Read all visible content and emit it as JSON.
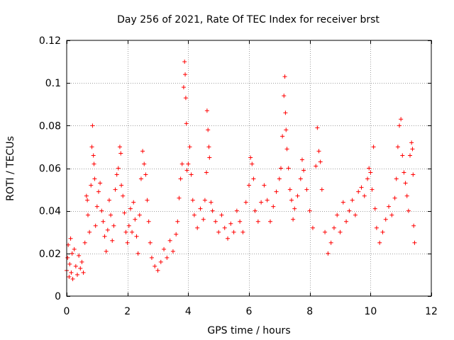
{
  "chart_data": {
    "type": "scatter",
    "title": "Day 256 of 2021, Rate Of TEC Index for receiver brst",
    "xlabel": "GPS time / hours",
    "ylabel": "ROTI / TECUs",
    "xlim": [
      0,
      12
    ],
    "ylim": [
      0,
      0.12
    ],
    "x_ticks": [
      0,
      2,
      4,
      6,
      8,
      10,
      12
    ],
    "x_tick_labels": [
      "0",
      "2",
      "4",
      "6",
      "8",
      "10",
      "12"
    ],
    "y_ticks": [
      0,
      0.02,
      0.04,
      0.06,
      0.08,
      0.1,
      0.12
    ],
    "y_tick_labels": [
      "0",
      "0.02",
      "0.04",
      "0.06",
      "0.08",
      "0.1",
      "0.12"
    ],
    "grid": true,
    "marker": "plus",
    "colors": {
      "series": "#ff0000",
      "axis": "#000000",
      "grid": "#a0a0a0"
    },
    "series": [
      {
        "name": "ROTI",
        "points": [
          [
            0.0,
            0.012
          ],
          [
            0.03,
            0.018
          ],
          [
            0.05,
            0.024
          ],
          [
            0.08,
            0.009
          ],
          [
            0.1,
            0.015
          ],
          [
            0.13,
            0.027
          ],
          [
            0.15,
            0.011
          ],
          [
            0.18,
            0.02
          ],
          [
            0.2,
            0.008
          ],
          [
            0.25,
            0.022
          ],
          [
            0.3,
            0.014
          ],
          [
            0.35,
            0.01
          ],
          [
            0.4,
            0.019
          ],
          [
            0.45,
            0.013
          ],
          [
            0.5,
            0.016
          ],
          [
            0.55,
            0.011
          ],
          [
            0.6,
            0.025
          ],
          [
            0.65,
            0.047
          ],
          [
            0.68,
            0.045
          ],
          [
            0.7,
            0.038
          ],
          [
            0.75,
            0.03
          ],
          [
            0.8,
            0.052
          ],
          [
            0.83,
            0.07
          ],
          [
            0.85,
            0.08
          ],
          [
            0.88,
            0.066
          ],
          [
            0.9,
            0.062
          ],
          [
            0.92,
            0.055
          ],
          [
            0.95,
            0.033
          ],
          [
            1.0,
            0.042
          ],
          [
            1.05,
            0.049
          ],
          [
            1.1,
            0.053
          ],
          [
            1.15,
            0.04
          ],
          [
            1.2,
            0.035
          ],
          [
            1.25,
            0.028
          ],
          [
            1.3,
            0.021
          ],
          [
            1.35,
            0.031
          ],
          [
            1.4,
            0.045
          ],
          [
            1.45,
            0.038
          ],
          [
            1.5,
            0.026
          ],
          [
            1.55,
            0.033
          ],
          [
            1.6,
            0.05
          ],
          [
            1.65,
            0.057
          ],
          [
            1.7,
            0.06
          ],
          [
            1.75,
            0.07
          ],
          [
            1.78,
            0.067
          ],
          [
            1.8,
            0.052
          ],
          [
            1.85,
            0.047
          ],
          [
            1.9,
            0.039
          ],
          [
            1.95,
            0.03
          ],
          [
            2.0,
            0.025
          ],
          [
            2.05,
            0.033
          ],
          [
            2.1,
            0.041
          ],
          [
            2.15,
            0.03
          ],
          [
            2.2,
            0.044
          ],
          [
            2.25,
            0.036
          ],
          [
            2.3,
            0.028
          ],
          [
            2.35,
            0.02
          ],
          [
            2.4,
            0.038
          ],
          [
            2.45,
            0.055
          ],
          [
            2.5,
            0.068
          ],
          [
            2.55,
            0.062
          ],
          [
            2.6,
            0.057
          ],
          [
            2.65,
            0.045
          ],
          [
            2.7,
            0.035
          ],
          [
            2.75,
            0.025
          ],
          [
            2.8,
            0.018
          ],
          [
            2.9,
            0.014
          ],
          [
            3.0,
            0.012
          ],
          [
            3.1,
            0.016
          ],
          [
            3.2,
            0.022
          ],
          [
            3.3,
            0.018
          ],
          [
            3.4,
            0.026
          ],
          [
            3.5,
            0.021
          ],
          [
            3.6,
            0.029
          ],
          [
            3.65,
            0.035
          ],
          [
            3.7,
            0.046
          ],
          [
            3.75,
            0.055
          ],
          [
            3.8,
            0.062
          ],
          [
            3.85,
            0.098
          ],
          [
            3.88,
            0.11
          ],
          [
            3.9,
            0.104
          ],
          [
            3.92,
            0.093
          ],
          [
            3.94,
            0.081
          ],
          [
            3.96,
            0.059
          ],
          [
            4.0,
            0.062
          ],
          [
            4.05,
            0.07
          ],
          [
            4.1,
            0.057
          ],
          [
            4.15,
            0.045
          ],
          [
            4.2,
            0.038
          ],
          [
            4.3,
            0.032
          ],
          [
            4.4,
            0.041
          ],
          [
            4.5,
            0.036
          ],
          [
            4.55,
            0.045
          ],
          [
            4.6,
            0.058
          ],
          [
            4.62,
            0.087
          ],
          [
            4.65,
            0.078
          ],
          [
            4.68,
            0.07
          ],
          [
            4.7,
            0.065
          ],
          [
            4.75,
            0.044
          ],
          [
            4.8,
            0.04
          ],
          [
            4.9,
            0.035
          ],
          [
            5.0,
            0.03
          ],
          [
            5.1,
            0.038
          ],
          [
            5.2,
            0.032
          ],
          [
            5.3,
            0.027
          ],
          [
            5.4,
            0.034
          ],
          [
            5.5,
            0.03
          ],
          [
            5.6,
            0.04
          ],
          [
            5.7,
            0.035
          ],
          [
            5.8,
            0.03
          ],
          [
            5.9,
            0.044
          ],
          [
            6.0,
            0.052
          ],
          [
            6.05,
            0.065
          ],
          [
            6.1,
            0.062
          ],
          [
            6.15,
            0.055
          ],
          [
            6.2,
            0.04
          ],
          [
            6.3,
            0.035
          ],
          [
            6.4,
            0.044
          ],
          [
            6.5,
            0.052
          ],
          [
            6.6,
            0.045
          ],
          [
            6.7,
            0.035
          ],
          [
            6.8,
            0.042
          ],
          [
            6.9,
            0.049
          ],
          [
            7.0,
            0.055
          ],
          [
            7.05,
            0.06
          ],
          [
            7.1,
            0.075
          ],
          [
            7.15,
            0.094
          ],
          [
            7.18,
            0.103
          ],
          [
            7.2,
            0.086
          ],
          [
            7.22,
            0.078
          ],
          [
            7.25,
            0.069
          ],
          [
            7.3,
            0.06
          ],
          [
            7.35,
            0.05
          ],
          [
            7.4,
            0.045
          ],
          [
            7.45,
            0.036
          ],
          [
            7.5,
            0.041
          ],
          [
            7.6,
            0.047
          ],
          [
            7.7,
            0.055
          ],
          [
            7.75,
            0.064
          ],
          [
            7.8,
            0.059
          ],
          [
            7.9,
            0.05
          ],
          [
            8.0,
            0.04
          ],
          [
            8.1,
            0.032
          ],
          [
            8.2,
            0.061
          ],
          [
            8.25,
            0.079
          ],
          [
            8.3,
            0.068
          ],
          [
            8.35,
            0.063
          ],
          [
            8.4,
            0.05
          ],
          [
            8.5,
            0.03
          ],
          [
            8.6,
            0.02
          ],
          [
            8.7,
            0.025
          ],
          [
            8.8,
            0.032
          ],
          [
            8.9,
            0.038
          ],
          [
            9.0,
            0.03
          ],
          [
            9.1,
            0.044
          ],
          [
            9.2,
            0.035
          ],
          [
            9.3,
            0.04
          ],
          [
            9.4,
            0.045
          ],
          [
            9.5,
            0.038
          ],
          [
            9.6,
            0.049
          ],
          [
            9.7,
            0.051
          ],
          [
            9.8,
            0.047
          ],
          [
            9.9,
            0.055
          ],
          [
            9.95,
            0.06
          ],
          [
            10.0,
            0.058
          ],
          [
            10.05,
            0.05
          ],
          [
            10.1,
            0.07
          ],
          [
            10.15,
            0.041
          ],
          [
            10.2,
            0.032
          ],
          [
            10.3,
            0.025
          ],
          [
            10.4,
            0.03
          ],
          [
            10.5,
            0.036
          ],
          [
            10.6,
            0.042
          ],
          [
            10.7,
            0.038
          ],
          [
            10.8,
            0.046
          ],
          [
            10.85,
            0.055
          ],
          [
            10.9,
            0.07
          ],
          [
            10.95,
            0.08
          ],
          [
            11.0,
            0.083
          ],
          [
            11.05,
            0.066
          ],
          [
            11.1,
            0.058
          ],
          [
            11.15,
            0.053
          ],
          [
            11.2,
            0.047
          ],
          [
            11.25,
            0.04
          ],
          [
            11.3,
            0.066
          ],
          [
            11.35,
            0.072
          ],
          [
            11.38,
            0.069
          ],
          [
            11.4,
            0.057
          ],
          [
            11.42,
            0.033
          ],
          [
            11.45,
            0.025
          ]
        ]
      }
    ]
  }
}
